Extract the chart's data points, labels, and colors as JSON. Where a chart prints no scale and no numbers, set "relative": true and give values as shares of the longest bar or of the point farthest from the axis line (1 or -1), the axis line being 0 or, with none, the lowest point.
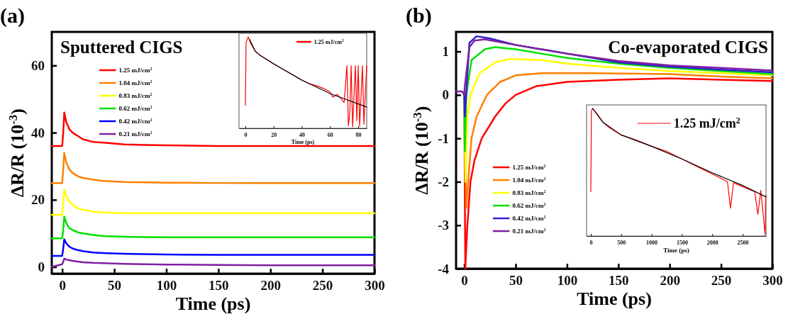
{
  "chart_data": [
    {
      "type": "line",
      "title": "(a)",
      "xlabel": "Time (ps)",
      "ylabel": "ΔR/R (10$^{-3}$)",
      "annotations": [
        "Sputtered CIGS"
      ],
      "xlim": [
        -10,
        300
      ],
      "ylim": [
        -2,
        70
      ],
      "xticks": [
        0,
        50,
        100,
        150,
        200,
        250,
        300
      ],
      "yticks": [
        0,
        20,
        40,
        60
      ],
      "legend": "top left",
      "grid": false,
      "x": [
        -10,
        0,
        1,
        2,
        4,
        7,
        10,
        15,
        20,
        30,
        40,
        60,
        80,
        100,
        150,
        200,
        250,
        300
      ],
      "series": [
        {
          "name": "1.25 mJ/cm$^{2}$",
          "color": "#ff0000",
          "values": [
            36,
            36,
            40,
            46,
            43,
            41,
            40,
            39,
            38,
            37.2,
            37,
            36.5,
            36.3,
            36.2,
            36,
            36,
            36,
            36
          ]
        },
        {
          "name": "1.04 mJ/cm$^{2}$",
          "color": "#ff8000",
          "values": [
            25,
            25,
            29,
            34,
            31,
            29,
            28,
            27,
            26.5,
            26,
            25.6,
            25.3,
            25.2,
            25.1,
            25,
            25,
            25,
            25
          ]
        },
        {
          "name": "0.83 mJ/cm$^{2}$",
          "color": "#ffff00",
          "values": [
            15.5,
            15.5,
            19,
            23,
            21,
            19.5,
            18.5,
            17.5,
            17,
            16.5,
            16.2,
            16,
            16,
            16,
            16,
            16,
            16,
            16
          ]
        },
        {
          "name": "0.62 mJ/cm$^{2}$",
          "color": "#00e000",
          "values": [
            8.5,
            8.5,
            11,
            15,
            13,
            11.5,
            11,
            10.3,
            10,
            9.5,
            9.2,
            9,
            8.9,
            8.8,
            8.8,
            8.8,
            8.8,
            8.8
          ]
        },
        {
          "name": "0.42 mJ/cm$^{2}$",
          "color": "#0000ff",
          "values": [
            3.3,
            3.3,
            5.5,
            8.2,
            7,
            6,
            5.5,
            5,
            4.7,
            4.3,
            4.1,
            3.9,
            3.8,
            3.7,
            3.6,
            3.6,
            3.6,
            3.6
          ]
        },
        {
          "name": "0.21 mJ/cm$^{2}$",
          "color": "#8020a0",
          "values": [
            0,
            0.8,
            1.5,
            2.5,
            2.2,
            2,
            1.8,
            1.6,
            1.4,
            1.2,
            1.1,
            0.9,
            0.8,
            0.7,
            0.6,
            0.5,
            0.5,
            0.5
          ]
        }
      ]
    },
    {
      "type": "line",
      "xlabel": "Time (ps)",
      "relative": true,
      "xlim": [
        -4.5,
        86
      ],
      "xticks": [
        0,
        20,
        40,
        60,
        80
      ],
      "legend": "top right",
      "series": [
        {
          "name": "1.25 mJ/cm$^{2}$",
          "color": "#ff0000",
          "x": [
            0,
            0.5,
            2,
            4,
            7,
            10,
            20,
            30,
            40,
            45,
            50,
            55,
            60,
            62,
            65,
            68,
            70,
            72,
            73,
            74,
            75,
            76,
            78,
            79,
            80,
            81,
            83,
            84,
            86
          ],
          "values": [
            0.24,
            0.94,
            1,
            0.92,
            0.84,
            0.8,
            0.7,
            0.61,
            0.52,
            0.48,
            0.46,
            0.43,
            0.39,
            0.33,
            0.36,
            0.31,
            0.27,
            0.68,
            0.01,
            0.15,
            0.68,
            0,
            0.68,
            0.07,
            0.68,
            0.01,
            0.68,
            0.03,
            0.68
          ]
        },
        {
          "color": "#000000",
          "x": [
            3,
            7,
            10,
            20,
            40,
            60,
            86
          ],
          "values": [
            0.97,
            0.84,
            0.8,
            0.7,
            0.52,
            0.37,
            0.22
          ]
        }
      ]
    },
    {
      "type": "line",
      "title": "(b)",
      "xlabel": "Time (ps)",
      "ylabel": "ΔR/R (10$^{-3}$)",
      "annotations": [
        "Co-evaporated CIGS"
      ],
      "xlim": [
        -8,
        300
      ],
      "ylim": [
        -4,
        1.45
      ],
      "xticks": [
        0,
        50,
        100,
        150,
        200,
        250,
        300
      ],
      "yticks": [
        -4,
        -3,
        -2,
        -1,
        0,
        1
      ],
      "legend": "bottom left",
      "grid": false,
      "series": [
        {
          "name": "1.25 mJ/cm$^{2}$",
          "color": "#ff0000",
          "x": [
            0,
            1,
            3,
            6,
            10,
            17,
            30,
            40,
            50,
            70,
            100,
            150,
            200,
            250,
            300
          ],
          "values": [
            0,
            -4,
            -3,
            -2,
            -1.5,
            -1,
            -0.5,
            -0.2,
            0,
            0.2,
            0.3,
            0.35,
            0.38,
            0.35,
            0.32
          ]
        },
        {
          "name": "1.04 mJ/cm$^{2}$",
          "color": "#ff8000",
          "x": [
            0,
            2,
            7,
            12,
            22,
            35,
            50,
            75,
            125,
            200,
            250,
            300
          ],
          "values": [
            0,
            -2.6,
            -1,
            -0.5,
            0,
            0.3,
            0.45,
            0.5,
            0.5,
            0.48,
            0.42,
            0.38
          ]
        },
        {
          "name": "0.83 mJ/cm$^{2}$",
          "color": "#ffff00",
          "x": [
            0,
            1,
            3,
            6,
            15,
            30,
            45,
            75,
            100,
            150,
            200,
            250,
            300
          ],
          "values": [
            0,
            -2,
            -0.5,
            0,
            0.5,
            0.75,
            0.83,
            0.8,
            0.72,
            0.62,
            0.55,
            0.5,
            0.45
          ]
        },
        {
          "name": "0.62 mJ/cm$^{2}$",
          "color": "#00e000",
          "x": [
            0,
            0.5,
            2,
            7,
            20,
            30,
            50,
            75,
            100,
            150,
            200,
            250,
            300
          ],
          "values": [
            0,
            -1.3,
            0,
            0.8,
            1.05,
            1.1,
            1.05,
            0.95,
            0.85,
            0.72,
            0.62,
            0.55,
            0.48
          ]
        },
        {
          "name": "0.42 mJ/cm$^{2}$",
          "color": "#3020d0",
          "x": [
            0,
            0.5,
            5,
            12,
            25,
            50,
            100,
            150,
            200,
            250,
            300
          ],
          "values": [
            0,
            -0.5,
            1.2,
            1.35,
            1.3,
            1.15,
            0.95,
            0.75,
            0.65,
            0.58,
            0.52
          ]
        },
        {
          "name": "0.21 mJ/cm$^{2}$",
          "color": "#8020a0",
          "x": [
            -8,
            -2,
            0,
            0.5,
            5,
            10,
            20,
            50,
            100,
            150,
            200,
            250,
            300
          ],
          "values": [
            0.08,
            0.08,
            0,
            0.2,
            1.1,
            1.25,
            1.28,
            1.15,
            0.95,
            0.78,
            0.68,
            0.62,
            0.56
          ]
        }
      ]
    },
    {
      "type": "line",
      "xlabel": "Time (ps)",
      "relative": true,
      "xlim": [
        -70,
        2885
      ],
      "xticks": [
        0,
        500,
        1000,
        1500,
        2000,
        2500
      ],
      "legend": "top right",
      "series": [
        {
          "name": "1.25 mJ/cm$^{2}$",
          "color": "#ff0000",
          "x": [
            0,
            10,
            30,
            100,
            200,
            300,
            500,
            750,
            1000,
            1250,
            1500,
            1750,
            2000,
            2250,
            2300,
            2350,
            2500,
            2700,
            2750,
            2800,
            2870,
            2880
          ],
          "values": [
            0.34,
            0.98,
            1,
            0.96,
            0.89,
            0.85,
            0.79,
            0.75,
            0.7,
            0.66,
            0.6,
            0.54,
            0.48,
            0.42,
            0.21,
            0.41,
            0.38,
            0.34,
            0.16,
            0.35,
            0,
            0.31
          ]
        },
        {
          "color": "#000000",
          "x": [
            30,
            200,
            500,
            1000,
            1500,
            2000,
            2500,
            2880
          ],
          "values": [
            1,
            0.89,
            0.79,
            0.7,
            0.6,
            0.49,
            0.39,
            0.3
          ]
        }
      ]
    }
  ]
}
